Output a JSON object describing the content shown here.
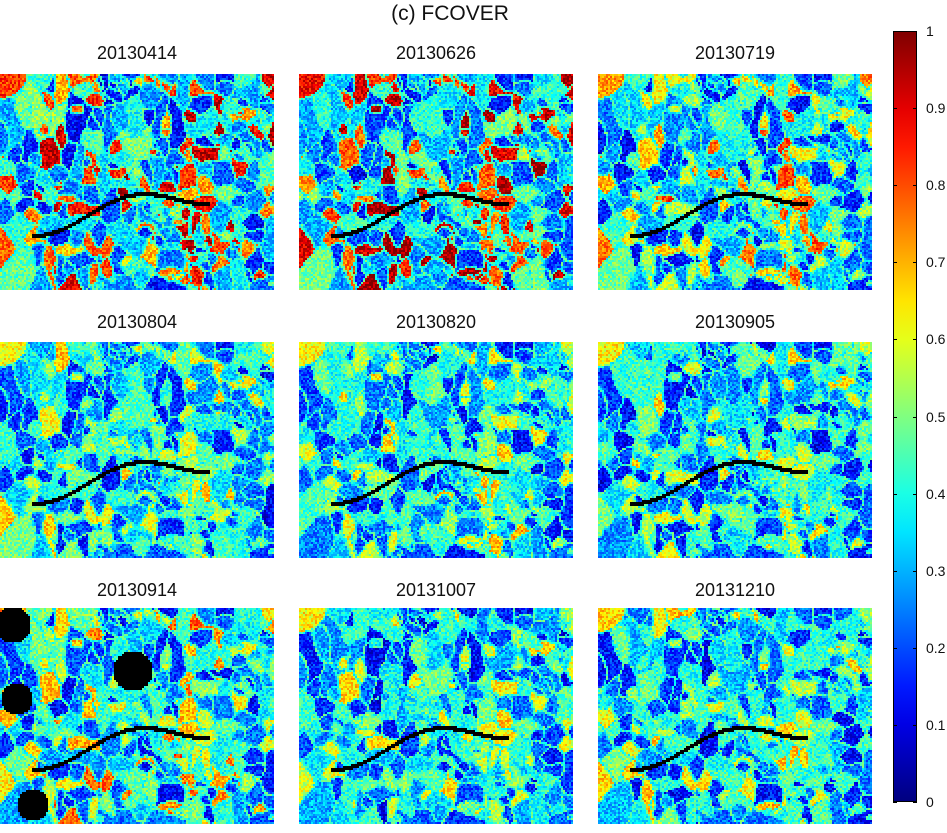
{
  "figure": {
    "title": "(c) FCOVER"
  },
  "chart_data": {
    "type": "heatmap",
    "variable": "FCOVER",
    "panels": [
      {
        "label": "20130414",
        "mean_level": 0.55
      },
      {
        "label": "20130626",
        "mean_level": 0.6
      },
      {
        "label": "20130719",
        "mean_level": 0.42
      },
      {
        "label": "20130804",
        "mean_level": 0.3
      },
      {
        "label": "20130820",
        "mean_level": 0.3
      },
      {
        "label": "20130905",
        "mean_level": 0.3
      },
      {
        "label": "20130914",
        "mean_level": 0.38
      },
      {
        "label": "20131007",
        "mean_level": 0.28
      },
      {
        "label": "20131210",
        "mean_level": 0.3
      }
    ],
    "colorbar": {
      "colormap": "jet",
      "range": [
        0,
        1
      ],
      "ticks": [
        "0",
        "0.1",
        "0.2",
        "0.3",
        "0.4",
        "0.5",
        "0.6",
        "0.7",
        "0.8",
        "0.9",
        "1"
      ],
      "placement": "right"
    }
  }
}
